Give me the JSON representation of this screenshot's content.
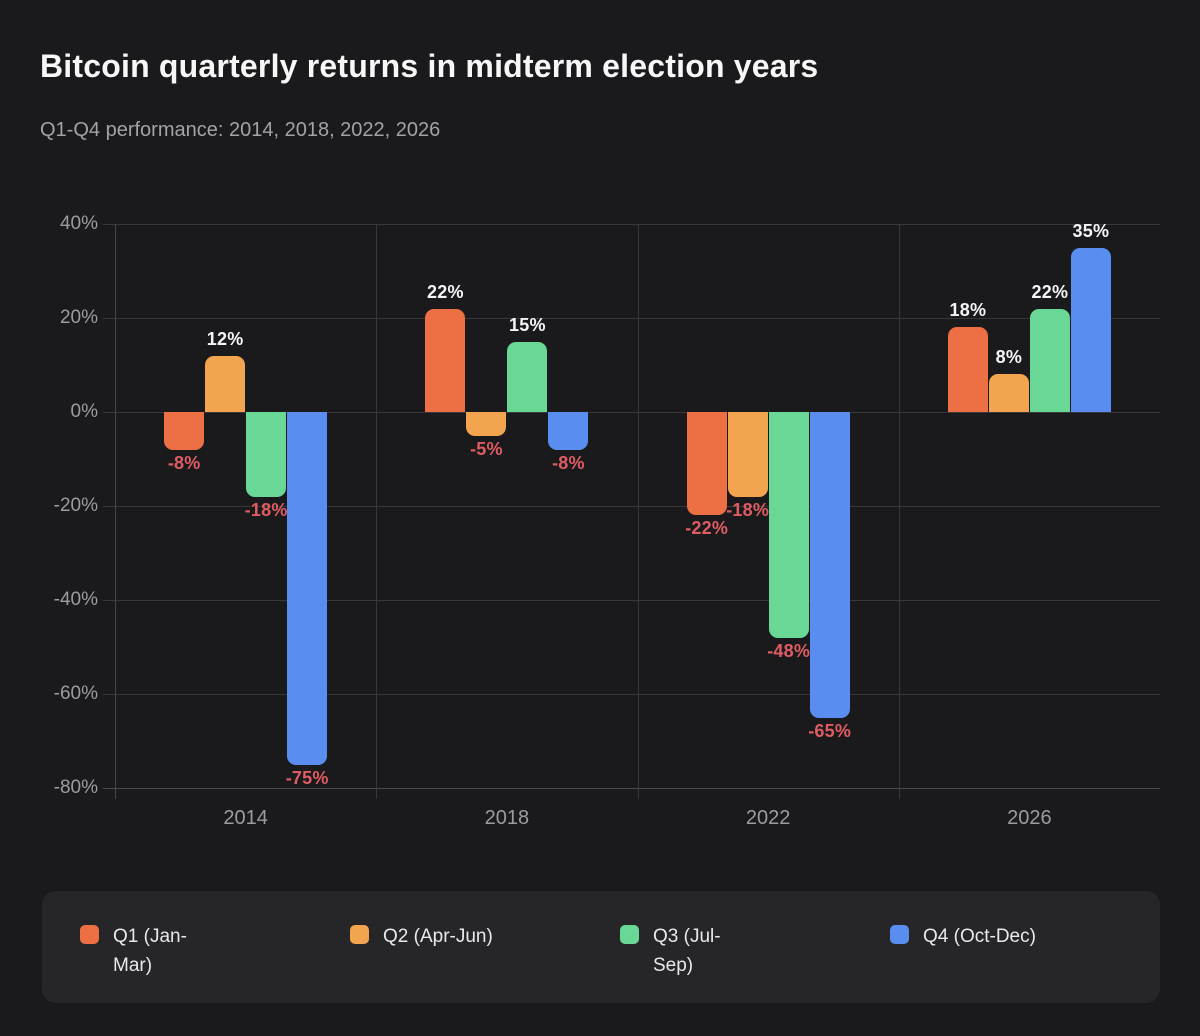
{
  "header": {
    "title": "Bitcoin quarterly returns in midterm election years",
    "subtitle": "Q1-Q4 performance: 2014, 2018, 2022, 2026"
  },
  "chart_data": {
    "type": "bar",
    "title": "Bitcoin quarterly returns in midterm election years",
    "subtitle": "Q1-Q4 performance: 2014, 2018, 2022, 2026",
    "categories": [
      "2014",
      "2018",
      "2022",
      "2026"
    ],
    "series": [
      {
        "name": "Q1 (Jan-Mar)",
        "legend_lines": [
          "Q1 (Jan-",
          "Mar)"
        ],
        "color": "#ed6f44",
        "values": [
          -8,
          22,
          -22,
          18
        ]
      },
      {
        "name": "Q2 (Apr-Jun)",
        "legend_lines": [
          "Q2 (Apr-Jun)"
        ],
        "color": "#f3a44f",
        "values": [
          12,
          -5,
          -18,
          8
        ]
      },
      {
        "name": "Q3 (Jul-Sep)",
        "legend_lines": [
          "Q3 (Jul-",
          "Sep)"
        ],
        "color": "#69d795",
        "values": [
          -18,
          15,
          -48,
          22
        ]
      },
      {
        "name": "Q4 (Oct-Dec)",
        "legend_lines": [
          "Q4 (Oct-Dec)"
        ],
        "color": "#598ef0",
        "values": [
          -75,
          -8,
          -65,
          35
        ]
      }
    ],
    "data_labels": {
      "2014": [
        "-8%",
        "12%",
        "-18%",
        "-75%"
      ],
      "2018": [
        "22%",
        "-5%",
        "15%",
        "-8%"
      ],
      "2022": [
        "-22%",
        "-18%",
        "-48%",
        "-65%"
      ],
      "2026": [
        "18%",
        "8%",
        "22%",
        "35%"
      ]
    },
    "y_ticks": [
      {
        "value": 40,
        "label": "40%"
      },
      {
        "value": 20,
        "label": "20%"
      },
      {
        "value": 0,
        "label": "0%"
      },
      {
        "value": -20,
        "label": "-20%"
      },
      {
        "value": -40,
        "label": "-40%"
      },
      {
        "value": -60,
        "label": "-60%"
      },
      {
        "value": -80,
        "label": "-80%"
      }
    ],
    "ylim": [
      -80,
      40
    ],
    "grid": true,
    "legend_position": "bottom",
    "colors": {
      "background": "#1a1a1c",
      "legend_background": "#262629",
      "gridline": "#38383c",
      "axis_text": "#9c9ca1",
      "positive_label": "#f5f5f7",
      "negative_label": "#df5c63",
      "title_text": "#f7f7f8",
      "subtitle_text": "#a2a2a7"
    }
  }
}
